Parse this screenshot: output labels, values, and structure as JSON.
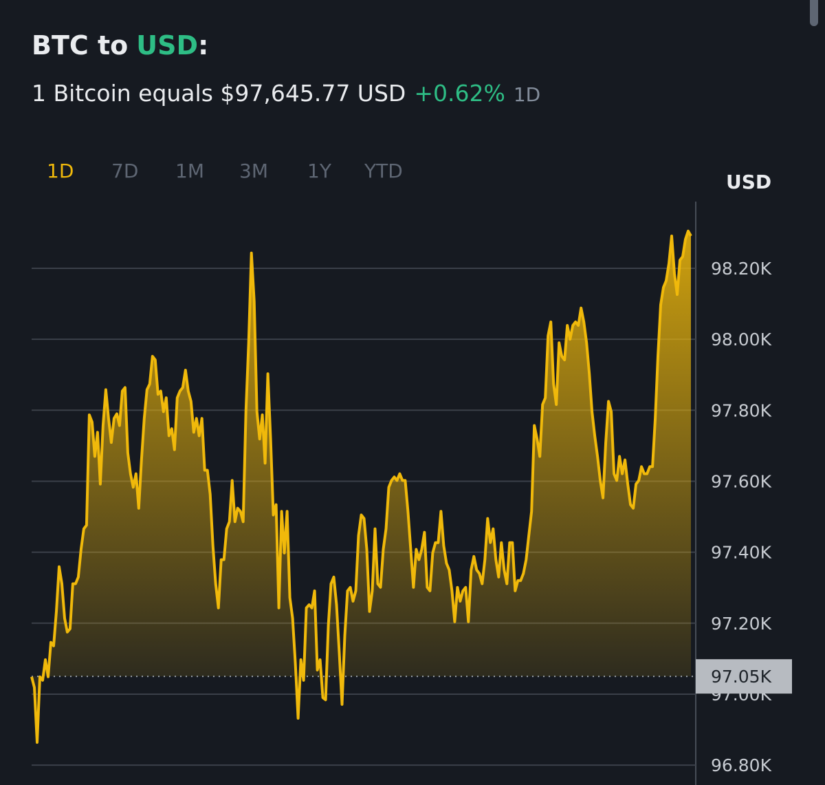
{
  "header": {
    "title": {
      "base": "BTC to",
      "currency": "USD",
      "suffix": ":"
    },
    "subtitle": {
      "text": "1 Bitcoin equals $97,645.77 USD",
      "change": "+0.62%",
      "period": "1D"
    }
  },
  "tabs": [
    "1D",
    "7D",
    "1M",
    "3M",
    "1Y",
    "YTD"
  ],
  "active_tab_index": 0,
  "chart_data": {
    "type": "line",
    "y_axis_label": "USD",
    "color": "#f0b90b",
    "grid": true,
    "ylim": [
      96744,
      98388
    ],
    "yticks": [
      {
        "value": 96800,
        "label": "96.80K"
      },
      {
        "value": 97000,
        "label": "97.00K"
      },
      {
        "value": 97200,
        "label": "97.20K"
      },
      {
        "value": 97400,
        "label": "97.40K"
      },
      {
        "value": 97600,
        "label": "97.60K"
      },
      {
        "value": 97800,
        "label": "97.80K"
      },
      {
        "value": 98000,
        "label": "98.00K"
      },
      {
        "value": 98200,
        "label": "98.20K"
      }
    ],
    "reference_line": {
      "value": 97050,
      "label": "97.05K"
    },
    "values": [
      97049,
      97019,
      96864,
      97049,
      97039,
      97097,
      97049,
      97146,
      97136,
      97233,
      97359,
      97311,
      97214,
      97175,
      97184,
      97311,
      97311,
      97330,
      97408,
      97466,
      97476,
      97787,
      97767,
      97670,
      97738,
      97592,
      97757,
      97858,
      97777,
      97709,
      97777,
      97790,
      97757,
      97854,
      97864,
      97680,
      97621,
      97583,
      97621,
      97524,
      97660,
      97777,
      97858,
      97874,
      97952,
      97942,
      97845,
      97854,
      97796,
      97835,
      97728,
      97748,
      97689,
      97835,
      97854,
      97864,
      97913,
      97854,
      97825,
      97738,
      97777,
      97728,
      97777,
      97631,
      97631,
      97563,
      97418,
      97311,
      97243,
      97379,
      97379,
      97466,
      97486,
      97602,
      97486,
      97524,
      97515,
      97486,
      97796,
      97990,
      98243,
      98107,
      97796,
      97719,
      97787,
      97651,
      97903,
      97719,
      97505,
      97534,
      97243,
      97515,
      97398,
      97515,
      97272,
      97214,
      97087,
      96932,
      97097,
      97039,
      97243,
      97252,
      97243,
      97291,
      97068,
      97097,
      96990,
      96984,
      97194,
      97311,
      97330,
      97252,
      97117,
      96971,
      97165,
      97291,
      97301,
      97262,
      97291,
      97447,
      97505,
      97495,
      97408,
      97233,
      97291,
      97466,
      97311,
      97301,
      97408,
      97466,
      97583,
      97602,
      97612,
      97602,
      97621,
      97602,
      97602,
      97515,
      97408,
      97301,
      97408,
      97379,
      97408,
      97456,
      97301,
      97291,
      97398,
      97427,
      97427,
      97515,
      97418,
      97369,
      97350,
      97291,
      97204,
      97301,
      97262,
      97291,
      97301,
      97204,
      97350,
      97388,
      97350,
      97340,
      97311,
      97379,
      97495,
      97427,
      97466,
      97379,
      97330,
      97427,
      97350,
      97311,
      97427,
      97427,
      97291,
      97320,
      97320,
      97340,
      97379,
      97447,
      97515,
      97757,
      97719,
      97670,
      97816,
      97835,
      98010,
      98049,
      97874,
      97816,
      97990,
      97952,
      97942,
      98039,
      98000,
      98039,
      98049,
      98039,
      98088,
      98049,
      97990,
      97903,
      97796,
      97728,
      97670,
      97602,
      97553,
      97709,
      97825,
      97796,
      97621,
      97602,
      97670,
      97621,
      97660,
      97592,
      97534,
      97524,
      97592,
      97602,
      97641,
      97621,
      97621,
      97641,
      97641,
      97777,
      97952,
      98097,
      98146,
      98165,
      98214,
      98291,
      98185,
      98126,
      98223,
      98233,
      98282,
      98305,
      98291
    ]
  }
}
